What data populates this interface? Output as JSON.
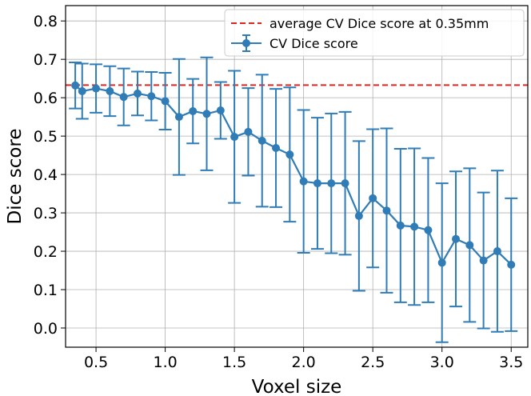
{
  "chart_data": {
    "type": "line",
    "title": "",
    "xlabel": "Voxel size",
    "ylabel": "Dice score",
    "xlim": [
      0.28,
      3.62
    ],
    "ylim": [
      -0.05,
      0.84
    ],
    "grid": true,
    "legend_position": "top-right",
    "x_ticks": [
      0.5,
      1.0,
      1.5,
      2.0,
      2.5,
      3.0,
      3.5
    ],
    "x_tick_labels": [
      "0.5",
      "1.0",
      "1.5",
      "2.0",
      "2.5",
      "3.0",
      "3.5"
    ],
    "y_ticks": [
      0.0,
      0.1,
      0.2,
      0.3,
      0.4,
      0.5,
      0.6,
      0.7,
      0.8
    ],
    "y_tick_labels": [
      "0.0",
      "0.1",
      "0.2",
      "0.3",
      "0.4",
      "0.5",
      "0.6",
      "0.7",
      "0.8"
    ],
    "reference_line": {
      "label": "average CV Dice score at 0.35mm",
      "y": 0.633,
      "color": "#e0241b",
      "style": "dashed"
    },
    "series": [
      {
        "name": "CV Dice score",
        "color": "#2f7cb6",
        "marker": "circle",
        "x": [
          0.35,
          0.4,
          0.5,
          0.6,
          0.7,
          0.8,
          0.9,
          1.0,
          1.1,
          1.2,
          1.3,
          1.4,
          1.5,
          1.6,
          1.7,
          1.8,
          1.9,
          2.0,
          2.1,
          2.2,
          2.3,
          2.4,
          2.5,
          2.6,
          2.7,
          2.8,
          2.9,
          3.0,
          3.1,
          3.2,
          3.3,
          3.4,
          3.5
        ],
        "y": [
          0.632,
          0.617,
          0.624,
          0.617,
          0.602,
          0.611,
          0.604,
          0.591,
          0.55,
          0.565,
          0.558,
          0.567,
          0.498,
          0.511,
          0.488,
          0.469,
          0.452,
          0.382,
          0.377,
          0.377,
          0.377,
          0.292,
          0.338,
          0.306,
          0.267,
          0.264,
          0.255,
          0.17,
          0.232,
          0.216,
          0.176,
          0.2,
          0.165
        ],
        "error": [
          0.06,
          0.072,
          0.063,
          0.065,
          0.074,
          0.057,
          0.063,
          0.074,
          0.151,
          0.084,
          0.147,
          0.074,
          0.172,
          0.114,
          0.172,
          0.154,
          0.175,
          0.186,
          0.171,
          0.182,
          0.186,
          0.195,
          0.18,
          0.214,
          0.2,
          0.204,
          0.188,
          0.207,
          0.176,
          0.2,
          0.177,
          0.21,
          0.173
        ]
      }
    ]
  }
}
